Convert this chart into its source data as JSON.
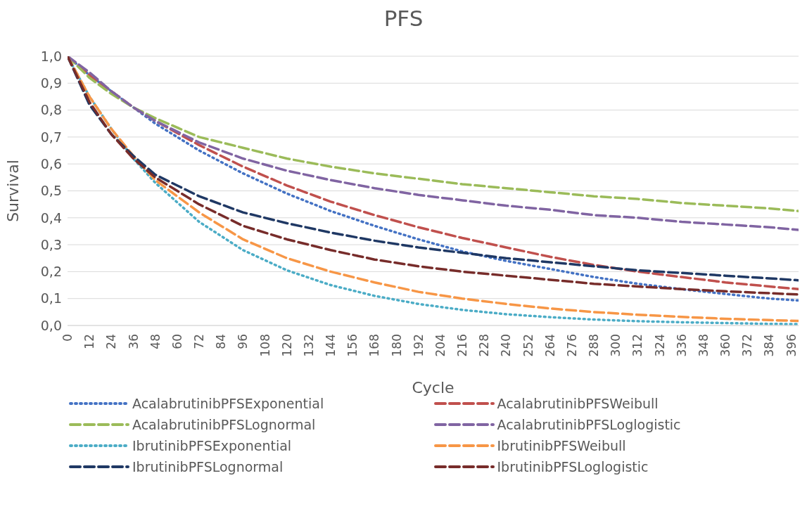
{
  "chart_data": {
    "type": "line",
    "title": "PFS",
    "xlabel": "Cycle",
    "ylabel": "Survival",
    "x": [
      0,
      12,
      24,
      36,
      48,
      72,
      96,
      120,
      144,
      168,
      192,
      216,
      240,
      264,
      288,
      312,
      336,
      360,
      384,
      400
    ],
    "xlim": [
      0,
      400
    ],
    "xticks": [
      0,
      12,
      24,
      36,
      48,
      60,
      72,
      84,
      96,
      108,
      120,
      132,
      144,
      156,
      168,
      180,
      192,
      204,
      216,
      228,
      240,
      252,
      264,
      276,
      288,
      300,
      312,
      324,
      336,
      348,
      360,
      372,
      384,
      396
    ],
    "ylim": [
      0,
      1
    ],
    "yticks": [
      {
        "value": 0,
        "label": "0,0"
      },
      {
        "value": 0.1,
        "label": "0,1"
      },
      {
        "value": 0.2,
        "label": "0,2"
      },
      {
        "value": 0.3,
        "label": "0,3"
      },
      {
        "value": 0.4,
        "label": "0,4"
      },
      {
        "value": 0.5,
        "label": "0,5"
      },
      {
        "value": 0.6,
        "label": "0,6"
      },
      {
        "value": 0.7,
        "label": "0,7"
      },
      {
        "value": 0.8,
        "label": "0,8"
      },
      {
        "value": 0.9,
        "label": "0,9"
      },
      {
        "value": 1,
        "label": "1,0"
      }
    ],
    "grid": "y",
    "legend": "bottom",
    "marker": "none",
    "series": [
      {
        "name": "AcalabrutinibPFSExponential",
        "color": "#4472c4",
        "line_style": "dotted",
        "values": [
          1,
          0.93,
          0.87,
          0.81,
          0.75,
          0.65,
          0.565,
          0.49,
          0.425,
          0.37,
          0.32,
          0.275,
          0.24,
          0.21,
          0.18,
          0.155,
          0.135,
          0.117,
          0.1,
          0.093
        ]
      },
      {
        "name": "AcalabrutinibPFSWeibull",
        "color": "#c0504d",
        "line_style": "dashed",
        "values": [
          1,
          0.93,
          0.87,
          0.81,
          0.76,
          0.67,
          0.59,
          0.52,
          0.46,
          0.41,
          0.365,
          0.325,
          0.29,
          0.255,
          0.225,
          0.2,
          0.18,
          0.16,
          0.145,
          0.135
        ]
      },
      {
        "name": "AcalabrutinibPFSLognormal",
        "color": "#9bbb59",
        "line_style": "dashed",
        "values": [
          1,
          0.92,
          0.86,
          0.81,
          0.77,
          0.7,
          0.66,
          0.62,
          0.59,
          0.565,
          0.545,
          0.525,
          0.51,
          0.495,
          0.48,
          0.47,
          0.455,
          0.445,
          0.435,
          0.425
        ]
      },
      {
        "name": "AcalabrutinibPFSLoglogistic",
        "color": "#8064a2",
        "line_style": "dashed",
        "values": [
          1,
          0.94,
          0.87,
          0.81,
          0.76,
          0.68,
          0.62,
          0.575,
          0.54,
          0.51,
          0.485,
          0.465,
          0.445,
          0.43,
          0.41,
          0.4,
          0.385,
          0.375,
          0.365,
          0.355
        ]
      },
      {
        "name": "IbrutinibPFSExponential",
        "color": "#4bacc6",
        "line_style": "dotted",
        "values": [
          1,
          0.85,
          0.73,
          0.62,
          0.53,
          0.385,
          0.28,
          0.205,
          0.15,
          0.11,
          0.08,
          0.058,
          0.042,
          0.031,
          0.022,
          0.016,
          0.012,
          0.009,
          0.006,
          0.005
        ]
      },
      {
        "name": "IbrutinibPFSWeibull",
        "color": "#f79646",
        "line_style": "dashed",
        "values": [
          1,
          0.85,
          0.73,
          0.63,
          0.54,
          0.42,
          0.32,
          0.25,
          0.2,
          0.16,
          0.125,
          0.1,
          0.08,
          0.063,
          0.05,
          0.04,
          0.032,
          0.025,
          0.02,
          0.017
        ]
      },
      {
        "name": "IbrutinibPFSLognormal",
        "color": "#1f3864",
        "line_style": "dashed",
        "values": [
          1,
          0.82,
          0.71,
          0.63,
          0.56,
          0.48,
          0.42,
          0.38,
          0.345,
          0.315,
          0.29,
          0.27,
          0.25,
          0.235,
          0.22,
          0.205,
          0.195,
          0.185,
          0.175,
          0.168
        ]
      },
      {
        "name": "IbrutinibPFSLoglogistic",
        "color": "#772c2a",
        "line_style": "dashed",
        "values": [
          1,
          0.83,
          0.71,
          0.62,
          0.55,
          0.45,
          0.37,
          0.32,
          0.28,
          0.245,
          0.22,
          0.2,
          0.185,
          0.17,
          0.155,
          0.145,
          0.135,
          0.127,
          0.12,
          0.115
        ]
      }
    ]
  }
}
